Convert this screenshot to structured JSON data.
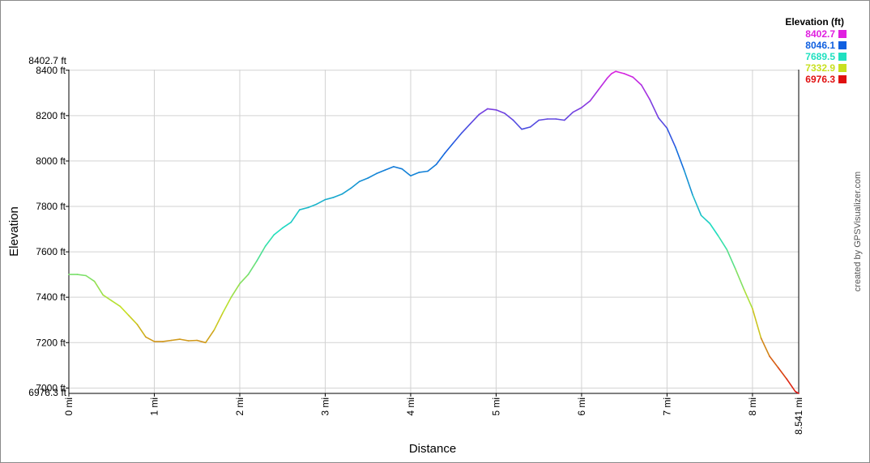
{
  "chart_data": {
    "type": "line",
    "xlabel": "Distance",
    "ylabel": "Elevation",
    "x_unit": "mi",
    "y_unit": "ft",
    "xlim": [
      0,
      8.541
    ],
    "ylim": [
      6976.3,
      8402.7
    ],
    "x_ticks": [
      0,
      1,
      2,
      3,
      4,
      5,
      6,
      7,
      8
    ],
    "x_tick_labels": [
      "0 mi",
      "1 mi",
      "2 mi",
      "3 mi",
      "4 mi",
      "5 mi",
      "6 mi",
      "7 mi",
      "8 mi"
    ],
    "x_end_label": "8.541 mi",
    "y_ticks": [
      7000,
      7200,
      7400,
      7600,
      7800,
      8000,
      8200,
      8400
    ],
    "y_tick_labels": [
      "7000 ft",
      "7200 ft",
      "7400 ft",
      "7600 ft",
      "7800 ft",
      "8000 ft",
      "8200 ft",
      "8400 ft"
    ],
    "y_max_label": "8402.7 ft",
    "y_min_label": "6976.3 ft",
    "grid": true,
    "legend_position": "top-right",
    "legend": {
      "title": "Elevation (ft)",
      "entries": [
        {
          "label": "8402.7",
          "color": "#e020e0"
        },
        {
          "label": "8046.1",
          "color": "#1060e0"
        },
        {
          "label": "7689.5",
          "color": "#20e0c0"
        },
        {
          "label": "7332.9",
          "color": "#c8e020"
        },
        {
          "label": "6976.3",
          "color": "#e01010"
        }
      ]
    },
    "credit": "created by GPSVisualizer.com",
    "series": [
      {
        "x": [
          0,
          0.1,
          0.2,
          0.3,
          0.4,
          0.5,
          0.6,
          0.7,
          0.8,
          0.9,
          1.0,
          1.1,
          1.2,
          1.3,
          1.4,
          1.5,
          1.6,
          1.7,
          1.8,
          1.9,
          2.0,
          2.1,
          2.2,
          2.3,
          2.4,
          2.5,
          2.6,
          2.7,
          2.8,
          2.9,
          3.0,
          3.1,
          3.2,
          3.3,
          3.4,
          3.5,
          3.6,
          3.7,
          3.8,
          3.9,
          4.0,
          4.1,
          4.2,
          4.3,
          4.4,
          4.5,
          4.6,
          4.7,
          4.8,
          4.9,
          5.0,
          5.1,
          5.2,
          5.3,
          5.4,
          5.5,
          5.6,
          5.7,
          5.8,
          5.9,
          6.0,
          6.1,
          6.2,
          6.3,
          6.35,
          6.4,
          6.5,
          6.6,
          6.7,
          6.8,
          6.9,
          7.0,
          7.1,
          7.2,
          7.3,
          7.4,
          7.5,
          7.6,
          7.7,
          7.8,
          7.9,
          8.0,
          8.1,
          8.2,
          8.3,
          8.4,
          8.5,
          8.541
        ],
        "y": [
          7500,
          7500,
          7495,
          7470,
          7410,
          7385,
          7360,
          7320,
          7280,
          7225,
          7205,
          7205,
          7210,
          7215,
          7208,
          7210,
          7200,
          7255,
          7330,
          7400,
          7460,
          7500,
          7560,
          7625,
          7675,
          7705,
          7730,
          7785,
          7795,
          7810,
          7830,
          7840,
          7855,
          7880,
          7910,
          7925,
          7945,
          7960,
          7975,
          7965,
          7935,
          7950,
          7955,
          7985,
          8035,
          8080,
          8125,
          8165,
          8205,
          8230,
          8225,
          8210,
          8180,
          8140,
          8150,
          8180,
          8185,
          8185,
          8180,
          8215,
          8235,
          8265,
          8315,
          8365,
          8385,
          8395,
          8385,
          8370,
          8335,
          8270,
          8190,
          8145,
          8060,
          7960,
          7850,
          7760,
          7725,
          7670,
          7610,
          7525,
          7435,
          7350,
          7220,
          7140,
          7090,
          7040,
          6985,
          6976
        ]
      }
    ]
  }
}
